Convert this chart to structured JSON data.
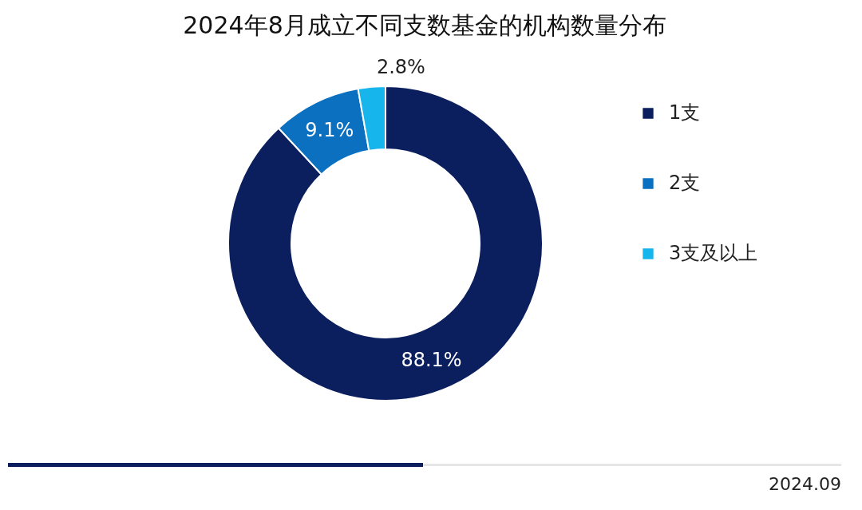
{
  "chart_data": {
    "type": "donut",
    "title": "2024年8月成立不同支数基金的机构数量分布",
    "categories": [
      "1支",
      "2支",
      "3支及以上"
    ],
    "values": [
      88.1,
      9.1,
      2.8
    ],
    "colors": [
      "#0b1f5e",
      "#0b70c0",
      "#16b5ec"
    ],
    "value_labels": [
      "88.1%",
      "9.1%",
      "2.8%"
    ],
    "legend": "right",
    "annotations": [
      "2024.09"
    ]
  }
}
